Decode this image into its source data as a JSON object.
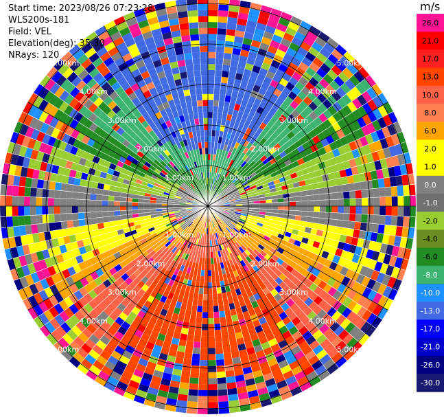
{
  "header": {
    "start_time": "Start time: 2023/08/26 07:23:28",
    "instrument": "WLS200s-181",
    "field": "Field: VEL",
    "elevation": "Elevation(deg): 35.30",
    "nrays": "NRays: 120"
  },
  "chart_data": {
    "type": "heatmap",
    "projection": "polar-ppi",
    "rays": 120,
    "range_rings_km": [
      1.0,
      2.0,
      3.0,
      4.0,
      5.0
    ],
    "ring_labels": [
      "1.00km",
      "2.00km",
      "3.00km",
      "4.00km",
      "5.00km"
    ],
    "spokes_deg": [
      0,
      30,
      60,
      90,
      120,
      150,
      180,
      210,
      240,
      270,
      300,
      330
    ],
    "colorbar": {
      "unit": "m/s",
      "ticks": [
        "26.0",
        "21.0",
        "17.0",
        "13.0",
        "10.0",
        "8.0",
        "6.0",
        "2.0",
        "1.0",
        "0.0",
        "-1.0",
        "-2.0",
        "-4.0",
        "-6.0",
        "-8.0",
        "-10.0",
        "-13.0",
        "-17.0",
        "-21.0",
        "-26.0",
        "-30.0"
      ],
      "colors": [
        "#ff1493",
        "#ff0000",
        "#ff2020",
        "#ff4500",
        "#ff6347",
        "#ff7f50",
        "#ffa500",
        "#ffff00",
        "#ffff00",
        "#808080",
        "#707070",
        "#9acd32",
        "#6b8e23",
        "#228b22",
        "#3cb371",
        "#1e90ff",
        "#4169e1",
        "#0000ff",
        "#0000cd",
        "#000080",
        "#191970"
      ]
    },
    "field": "VEL",
    "elevation_deg": 35.3,
    "max_range_km": 5.0
  }
}
